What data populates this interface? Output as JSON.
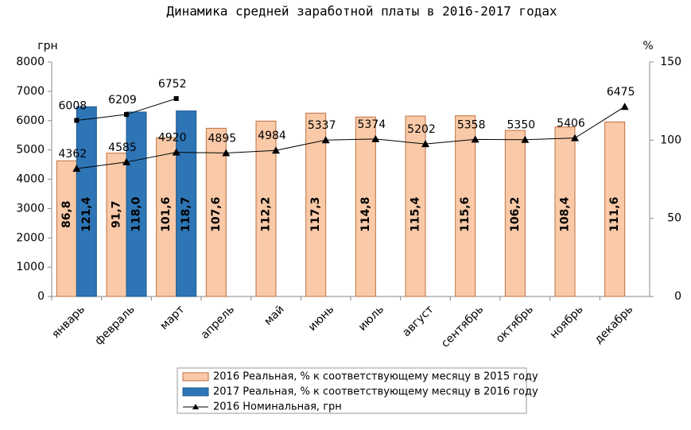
{
  "chart_data": {
    "type": "bar",
    "title": "Динамика средней заработной платы в 2016-2017 годах",
    "y_label": "грн",
    "y2_label": "%",
    "categories": [
      "январь",
      "февраль",
      "март",
      "апрель",
      "май",
      "июнь",
      "июль",
      "август",
      "сентябрь",
      "октябрь",
      "ноябрь",
      "декабрь"
    ],
    "ylim": [
      0,
      8000
    ],
    "yticks": [
      0,
      1000,
      2000,
      3000,
      4000,
      5000,
      6000,
      7000,
      8000
    ],
    "y2lim": [
      0,
      150
    ],
    "y2ticks": [
      0,
      50,
      100,
      150
    ],
    "legend": "bottom",
    "series": [
      {
        "name": "2016 Реальная, % к соответствующему месяцу в 2015 году",
        "type": "bar",
        "axis": "y2",
        "color": "#f9c9a8",
        "values": [
          86.8,
          91.7,
          101.6,
          107.6,
          112.2,
          117.3,
          114.8,
          115.4,
          115.6,
          106.2,
          108.4,
          111.6
        ],
        "value_labels": [
          "86,8",
          "91,7",
          "101,6",
          "107,6",
          "112,2",
          "117,3",
          "114,8",
          "115,4",
          "115,6",
          "106,2",
          "108,4",
          "111,6"
        ]
      },
      {
        "name": "2017 Реальная, % к соответствующему месяцу в 2016 году",
        "type": "bar",
        "axis": "y2",
        "color": "#2e75b6",
        "values": [
          121.4,
          118.0,
          118.7,
          null,
          null,
          null,
          null,
          null,
          null,
          null,
          null,
          null
        ],
        "value_labels": [
          "121,4",
          "118,0",
          "118,7",
          null,
          null,
          null,
          null,
          null,
          null,
          null,
          null,
          null
        ]
      },
      {
        "name": "2016 Номинальная, грн",
        "type": "line",
        "marker": "triangle",
        "color": "#000000",
        "values": [
          4362,
          4585,
          4920,
          4895,
          4984,
          5337,
          5374,
          5202,
          5358,
          5350,
          5406,
          6475
        ]
      },
      {
        "type": "line",
        "marker": "square",
        "color": "#000000",
        "values": [
          6008,
          6209,
          6752,
          null,
          null,
          null,
          null,
          null,
          null,
          null,
          null,
          null
        ]
      }
    ]
  }
}
